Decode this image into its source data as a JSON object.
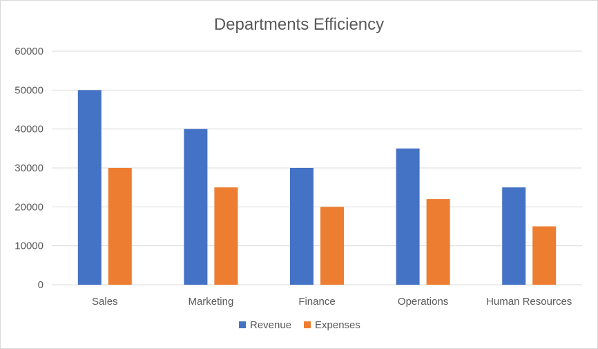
{
  "chart_data": {
    "type": "bar",
    "title": "Departments Efficiency",
    "categories": [
      "Sales",
      "Marketing",
      "Finance",
      "Operations",
      "Human Resources"
    ],
    "series": [
      {
        "name": "Revenue",
        "color": "#4472c4",
        "values": [
          50000,
          40000,
          30000,
          35000,
          25000
        ]
      },
      {
        "name": "Expenses",
        "color": "#ed7d31",
        "values": [
          30000,
          25000,
          20000,
          22000,
          15000
        ]
      }
    ],
    "ylim": [
      0,
      60000
    ],
    "yticks": [
      0,
      10000,
      20000,
      30000,
      40000,
      50000,
      60000
    ],
    "grid": true,
    "legend_position": "bottom"
  }
}
